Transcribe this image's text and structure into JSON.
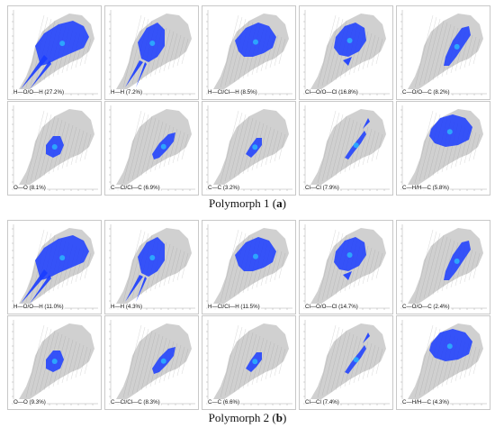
{
  "chart_data": [
    {
      "type": "scatter",
      "caption": {
        "prefix": "Polymorph 1 (",
        "letter": "a",
        "suffix": ")"
      },
      "panels": [
        {
          "label": "H—O/O—H (27.2%)",
          "fp": "hodh"
        },
        {
          "label": "H—H (7.2%)",
          "fp": "hh"
        },
        {
          "label": "H—Cl/Cl—H (8.5%)",
          "fp": "hcl"
        },
        {
          "label": "Cl—O/O—Cl (16.8%)",
          "fp": "clo"
        },
        {
          "label": "C—O/O—C (8.2%)",
          "fp": "co"
        },
        {
          "label": "O—O (8.1%)",
          "fp": "oo"
        },
        {
          "label": "C—Cl/Cl—C (6.9%)",
          "fp": "ccl"
        },
        {
          "label": "C—C (3.2%)",
          "fp": "cc"
        },
        {
          "label": "Cl—Cl (7.9%)",
          "fp": "clcl"
        },
        {
          "label": "C—H/H—C (5.8%)",
          "fp": "ch"
        }
      ]
    },
    {
      "type": "scatter",
      "caption": {
        "prefix": "Polymorph 2 (",
        "letter": "b",
        "suffix": ")"
      },
      "panels": [
        {
          "label": "H—O/O—H (11.0%)",
          "fp": "hodh"
        },
        {
          "label": "H—H (4.3%)",
          "fp": "hh"
        },
        {
          "label": "H—Cl/Cl—H (11.5%)",
          "fp": "hcl"
        },
        {
          "label": "Cl—O/O—Cl (14.7%)",
          "fp": "clo"
        },
        {
          "label": "C—O/O—C (2.4%)",
          "fp": "co"
        },
        {
          "label": "O—O (9.3%)",
          "fp": "oo"
        },
        {
          "label": "C—Cl/Cl—C (8.3%)",
          "fp": "ccl"
        },
        {
          "label": "C—C (6.6%)",
          "fp": "cc"
        },
        {
          "label": "Cl—Cl (7.4%)",
          "fp": "clcl"
        },
        {
          "label": "C—H/H—C (4.3%)",
          "fp": "ch"
        }
      ]
    }
  ],
  "colors": {
    "background_fingerprint": "#a9a9a9",
    "highlight": "#1a3cff",
    "highlight_core": "#29c9ff"
  }
}
